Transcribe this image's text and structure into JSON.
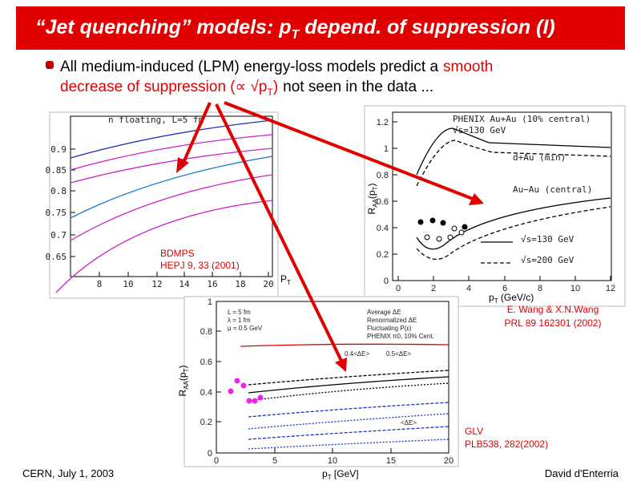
{
  "header": {
    "title": [
      "“Jet quenching” models: p",
      "T",
      " depend. of suppression (I)"
    ]
  },
  "bullet": {
    "text": [
      "All medium-induced (LPM) energy-loss models predict a",
      "smooth",
      "decrease of suppression (∝ √p",
      "T",
      ")",
      "not seen in the data ..."
    ]
  },
  "figures": [
    {
      "legend": [
        "n floating, L=5 fm"
      ],
      "yticks": [
        "0.9",
        "0.85",
        "0.8",
        "0.75",
        "0.7",
        "0.65"
      ],
      "xticks": [
        "8",
        "10",
        "12",
        "14",
        "16",
        "18",
        "20"
      ],
      "xlabel": [
        "P",
        "T"
      ],
      "caption": [
        "BDMPS",
        "HEPJ 9, 33 (2001)"
      ]
    },
    {
      "legend": [
        "PHENIX Au+Au (10% central)",
        "√s=130 GeV",
        "d+Au (min)",
        "Au−Au (central)",
        "√s=130 GeV",
        "√s=200 GeV"
      ],
      "yticks": [
        "0",
        "0.2",
        "0.4",
        "0.6",
        "0.8",
        "1",
        "1.2"
      ],
      "xticks": [
        "0",
        "2",
        "4",
        "6",
        "8",
        "10",
        "12"
      ],
      "xlabel": [
        "p",
        "T",
        " (GeV/c)"
      ],
      "ylabel": [
        "R",
        "AA",
        "(p",
        "T",
        ")"
      ],
      "caption": [
        "E. Wang & X.N.Wang",
        "PRL 89 162301 (2002)"
      ]
    },
    {
      "legend": [
        "L = 5 fm",
        "λ = 1 fm",
        "μ = 0.5 GeV",
        "Average ΔE",
        "Renormalized ΔE",
        "Fluctuating P(ε)",
        "PHENIX π0, 10% Cent.",
        "0.4<ΔE>",
        "0.5<ΔE>",
        "<ΔE>"
      ],
      "yticks": [
        "0",
        "0.2",
        "0.4",
        "0.6",
        "0.8",
        "1"
      ],
      "xticks": [
        "0",
        "5",
        "10",
        "15",
        "20"
      ],
      "xlabel": [
        "p",
        "T",
        " [GeV]"
      ],
      "ylabel": [
        "R",
        "AA",
        "(p",
        "T",
        ")"
      ],
      "caption": [
        "GLV",
        "PLB538, 282(2002)"
      ]
    }
  ],
  "footer": {
    "left": "CERN, July 1, 2003",
    "right": "David d'Enterria"
  }
}
